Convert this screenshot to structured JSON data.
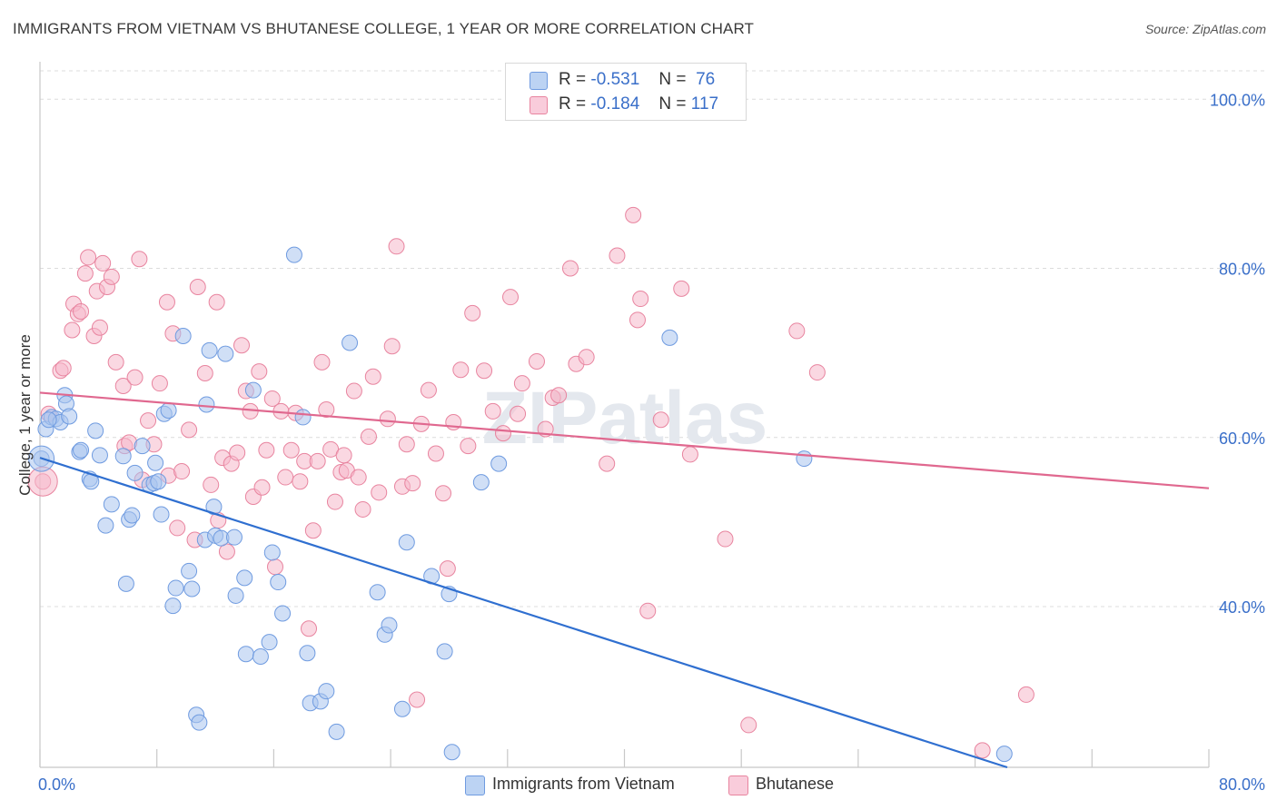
{
  "title": "IMMIGRANTS FROM VIETNAM VS BHUTANESE COLLEGE, 1 YEAR OR MORE CORRELATION CHART",
  "source": "Source: ZipAtlas.com",
  "watermark": "ZIPatlas",
  "legend": {
    "rows": [
      {
        "r_label": "R =",
        "r_value": "-0.531",
        "n_label": "N =",
        "n_value": "76",
        "color": "#a9c4ee"
      },
      {
        "r_label": "R =",
        "r_value": "-0.184",
        "n_label": "N =",
        "n_value": "117",
        "color": "#f5b8cb"
      }
    ]
  },
  "bottom_legend": [
    {
      "label": "Immigrants from Vietnam",
      "color": "#a9c4ee"
    },
    {
      "label": "Bhutanese",
      "color": "#f5b8cb"
    }
  ],
  "chart_data": {
    "type": "scatter",
    "title": "IMMIGRANTS FROM VIETNAM VS BHUTANESE COLLEGE, 1 YEAR OR MORE CORRELATION CHART",
    "xlabel": "",
    "ylabel": "College, 1 year or more",
    "xlim": [
      0,
      80
    ],
    "ylim": [
      21,
      104
    ],
    "x_tick_labels": [
      "0.0%",
      "80.0%"
    ],
    "y_tick_labels": [
      {
        "value": 100,
        "label": "100.0%"
      },
      {
        "value": 80,
        "label": "80.0%"
      },
      {
        "value": 60,
        "label": "60.0%"
      },
      {
        "value": 40,
        "label": "40.0%"
      }
    ],
    "grid": true,
    "series": [
      {
        "name": "Immigrants from Vietnam",
        "color": "#6f9be0",
        "fill": "#a9c4ee",
        "trend": {
          "x": [
            0,
            66.2
          ],
          "y": [
            57.6,
            21
          ]
        },
        "x": [
          0.1,
          0.4,
          0.8,
          1.1,
          1.4,
          1.7,
          1.8,
          2.0,
          2.7,
          2.8,
          3.4,
          3.5,
          3.8,
          4.1,
          4.5,
          4.9,
          5.7,
          5.9,
          6.1,
          6.3,
          6.5,
          7.0,
          7.5,
          7.8,
          7.9,
          8.1,
          8.3,
          8.5,
          8.8,
          9.1,
          9.3,
          9.8,
          10.2,
          10.4,
          10.7,
          10.9,
          11.3,
          11.4,
          11.6,
          11.9,
          12.0,
          12.4,
          12.7,
          13.3,
          13.4,
          14.0,
          14.1,
          14.6,
          15.1,
          15.7,
          15.9,
          16.3,
          16.6,
          17.4,
          18.0,
          18.3,
          18.5,
          19.2,
          19.6,
          20.3,
          21.2,
          23.1,
          23.6,
          23.9,
          24.8,
          25.1,
          26.8,
          27.7,
          28.0,
          28.2,
          30.2,
          31.4,
          43.1,
          52.3,
          66.0,
          0.6
        ],
        "y": [
          57.5,
          61.0,
          62.4,
          62.2,
          61.8,
          65.0,
          64.0,
          62.5,
          58.3,
          58.5,
          55.1,
          54.8,
          60.8,
          57.9,
          49.6,
          52.1,
          57.8,
          42.7,
          50.3,
          50.8,
          55.8,
          59.0,
          54.4,
          54.6,
          57.0,
          54.8,
          50.9,
          62.8,
          63.2,
          40.1,
          42.2,
          72.0,
          44.2,
          42.1,
          27.2,
          26.3,
          47.9,
          63.9,
          70.3,
          51.8,
          48.4,
          48.1,
          69.9,
          48.2,
          41.3,
          43.4,
          34.4,
          65.6,
          34.1,
          35.8,
          46.4,
          42.9,
          39.2,
          81.6,
          62.4,
          34.5,
          28.6,
          28.8,
          30.0,
          25.2,
          71.2,
          41.7,
          36.7,
          37.8,
          27.9,
          47.6,
          43.6,
          34.7,
          41.5,
          22.8,
          54.7,
          56.9,
          71.8,
          57.5,
          22.6,
          62.1
        ]
      },
      {
        "name": "Bhutanese",
        "color": "#e8849f",
        "fill": "#f5b8cb",
        "trend": {
          "x": [
            0,
            80
          ],
          "y": [
            65.3,
            54.0
          ]
        },
        "x": [
          0.2,
          0.6,
          1.4,
          1.6,
          2.2,
          2.3,
          2.6,
          2.8,
          3.1,
          3.3,
          3.7,
          3.9,
          4.1,
          4.3,
          4.6,
          4.9,
          5.2,
          5.7,
          5.8,
          6.1,
          6.5,
          6.8,
          7.0,
          7.4,
          7.8,
          8.2,
          8.7,
          8.8,
          9.1,
          9.4,
          9.7,
          10.2,
          10.6,
          10.8,
          11.3,
          11.7,
          12.1,
          12.2,
          12.5,
          12.8,
          13.1,
          13.5,
          13.8,
          14.1,
          14.4,
          14.6,
          15.0,
          15.2,
          15.5,
          15.9,
          16.1,
          16.5,
          16.8,
          17.2,
          17.5,
          17.8,
          18.1,
          18.4,
          18.7,
          19.0,
          19.3,
          19.6,
          19.9,
          20.2,
          20.6,
          20.8,
          21.0,
          21.5,
          21.8,
          22.1,
          22.5,
          22.8,
          23.2,
          23.8,
          24.1,
          24.4,
          24.8,
          25.1,
          25.5,
          25.8,
          26.1,
          26.6,
          27.1,
          27.6,
          27.9,
          28.3,
          28.8,
          29.3,
          29.6,
          30.4,
          31.0,
          31.7,
          32.2,
          32.7,
          33.0,
          34.0,
          34.6,
          35.1,
          35.5,
          36.3,
          36.7,
          37.4,
          38.8,
          39.5,
          40.6,
          40.9,
          41.1,
          41.6,
          42.5,
          43.9,
          44.5,
          46.9,
          48.5,
          51.8,
          53.2,
          64.5,
          67.5
        ],
        "y": [
          54.8,
          62.8,
          67.9,
          68.2,
          72.7,
          75.8,
          74.6,
          74.9,
          79.4,
          81.3,
          72.0,
          77.3,
          73.0,
          80.6,
          77.8,
          79.0,
          68.9,
          66.1,
          59.0,
          59.4,
          67.1,
          81.1,
          55.0,
          62.0,
          59.2,
          66.4,
          76.0,
          55.5,
          72.3,
          49.3,
          56.0,
          60.9,
          47.9,
          77.8,
          67.6,
          54.4,
          76.0,
          50.2,
          57.6,
          46.5,
          56.9,
          58.2,
          70.9,
          65.5,
          63.1,
          53.0,
          67.8,
          54.1,
          58.5,
          64.6,
          44.7,
          63.1,
          55.3,
          58.5,
          62.9,
          54.8,
          57.2,
          37.4,
          49.0,
          57.2,
          68.9,
          63.3,
          58.6,
          52.4,
          55.9,
          57.9,
          56.1,
          65.5,
          55.3,
          51.5,
          60.1,
          67.2,
          53.5,
          62.2,
          70.8,
          82.6,
          54.2,
          59.2,
          54.6,
          29.0,
          61.6,
          65.6,
          58.1,
          53.4,
          44.5,
          61.8,
          68.0,
          59.0,
          74.7,
          67.9,
          63.1,
          60.5,
          76.6,
          62.8,
          66.4,
          69.0,
          61.0,
          64.7,
          65.0,
          80.0,
          68.7,
          69.5,
          56.9,
          81.5,
          86.3,
          73.9,
          76.4,
          39.5,
          62.1,
          77.6,
          58.0,
          48.0,
          26.0,
          72.6,
          67.7,
          23.0,
          29.6
        ]
      }
    ]
  }
}
